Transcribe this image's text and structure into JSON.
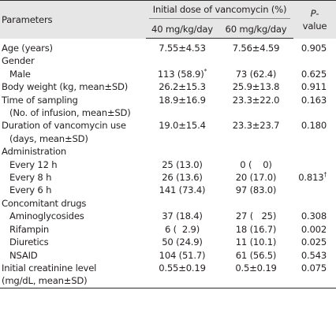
{
  "header": {
    "parameters": "Parameters",
    "group": "Initial dose of vancomycin (%)",
    "col_40": "40 mg/kg/day",
    "col_60": "60 mg/kg/day",
    "p_label": "P",
    "p_dash": "-",
    "p_value_word": "value"
  },
  "rows": [
    {
      "label": "Age (years)",
      "v40": "7.55±4.53",
      "v60": "7.56±4.59",
      "p": "0.905"
    },
    {
      "label": "Gender",
      "v40": "",
      "v60": "",
      "p": ""
    },
    {
      "label": "Male",
      "v40": "113 (58.9)",
      "v40_sup": "*",
      "v60": "73 (62.4)",
      "p": "0.625"
    },
    {
      "label": "Body weight (kg, mean±SD)",
      "v40": "26.2±15.3",
      "v60": "25.9±13.8",
      "p": "0.911"
    },
    {
      "label": "Time of sampling",
      "v40": "18.9±16.9",
      "v60": "23.3±22.0",
      "p": "0.163"
    },
    {
      "label": "(No. of infusion, mean±SD)",
      "v40": "",
      "v60": "",
      "p": ""
    },
    {
      "label": "Duration of vancomycin use",
      "v40": "19.0±15.4",
      "v60": "23.3±23.7",
      "p": "0.180"
    },
    {
      "label": "(days, mean±SD)",
      "v40": "",
      "v60": "",
      "p": ""
    },
    {
      "label": "Administration",
      "v40": "",
      "v60": "",
      "p": ""
    },
    {
      "label": "Every 12 h",
      "v40": "25 (13.0)",
      "v60": "0 (    0)",
      "p": ""
    },
    {
      "label": "Every 8 h",
      "v40": "26 (13.6)",
      "v60": "20 (17.0)",
      "p": "0.813",
      "p_sup": "†"
    },
    {
      "label": "Every 6 h",
      "v40": "141 (73.4)",
      "v60": "97 (83.0)",
      "p": ""
    },
    {
      "label": "Concomitant drugs",
      "v40": "",
      "v60": "",
      "p": ""
    },
    {
      "label": "Aminoglycosides",
      "v40": "37 (18.4)",
      "v60": "27 (   25)",
      "p": "0.308"
    },
    {
      "label": "Rifampin",
      "v40": "6 (  2.9)",
      "v60": "18 (16.7)",
      "p": "0.002"
    },
    {
      "label": "Diuretics",
      "v40": "50 (24.9)",
      "v60": "11 (10.1)",
      "p": "0.025"
    },
    {
      "label": "NSAID",
      "v40": "104 (51.7)",
      "v60": "61 (56.5)",
      "p": "0.543"
    },
    {
      "label": "Initial creatinine level",
      "v40": "0.55±0.19",
      "v60": "0.5±0.19",
      "p": "0.075"
    },
    {
      "label": "(mg/dL, mean±SD)",
      "v40": "",
      "v60": "",
      "p": ""
    }
  ]
}
